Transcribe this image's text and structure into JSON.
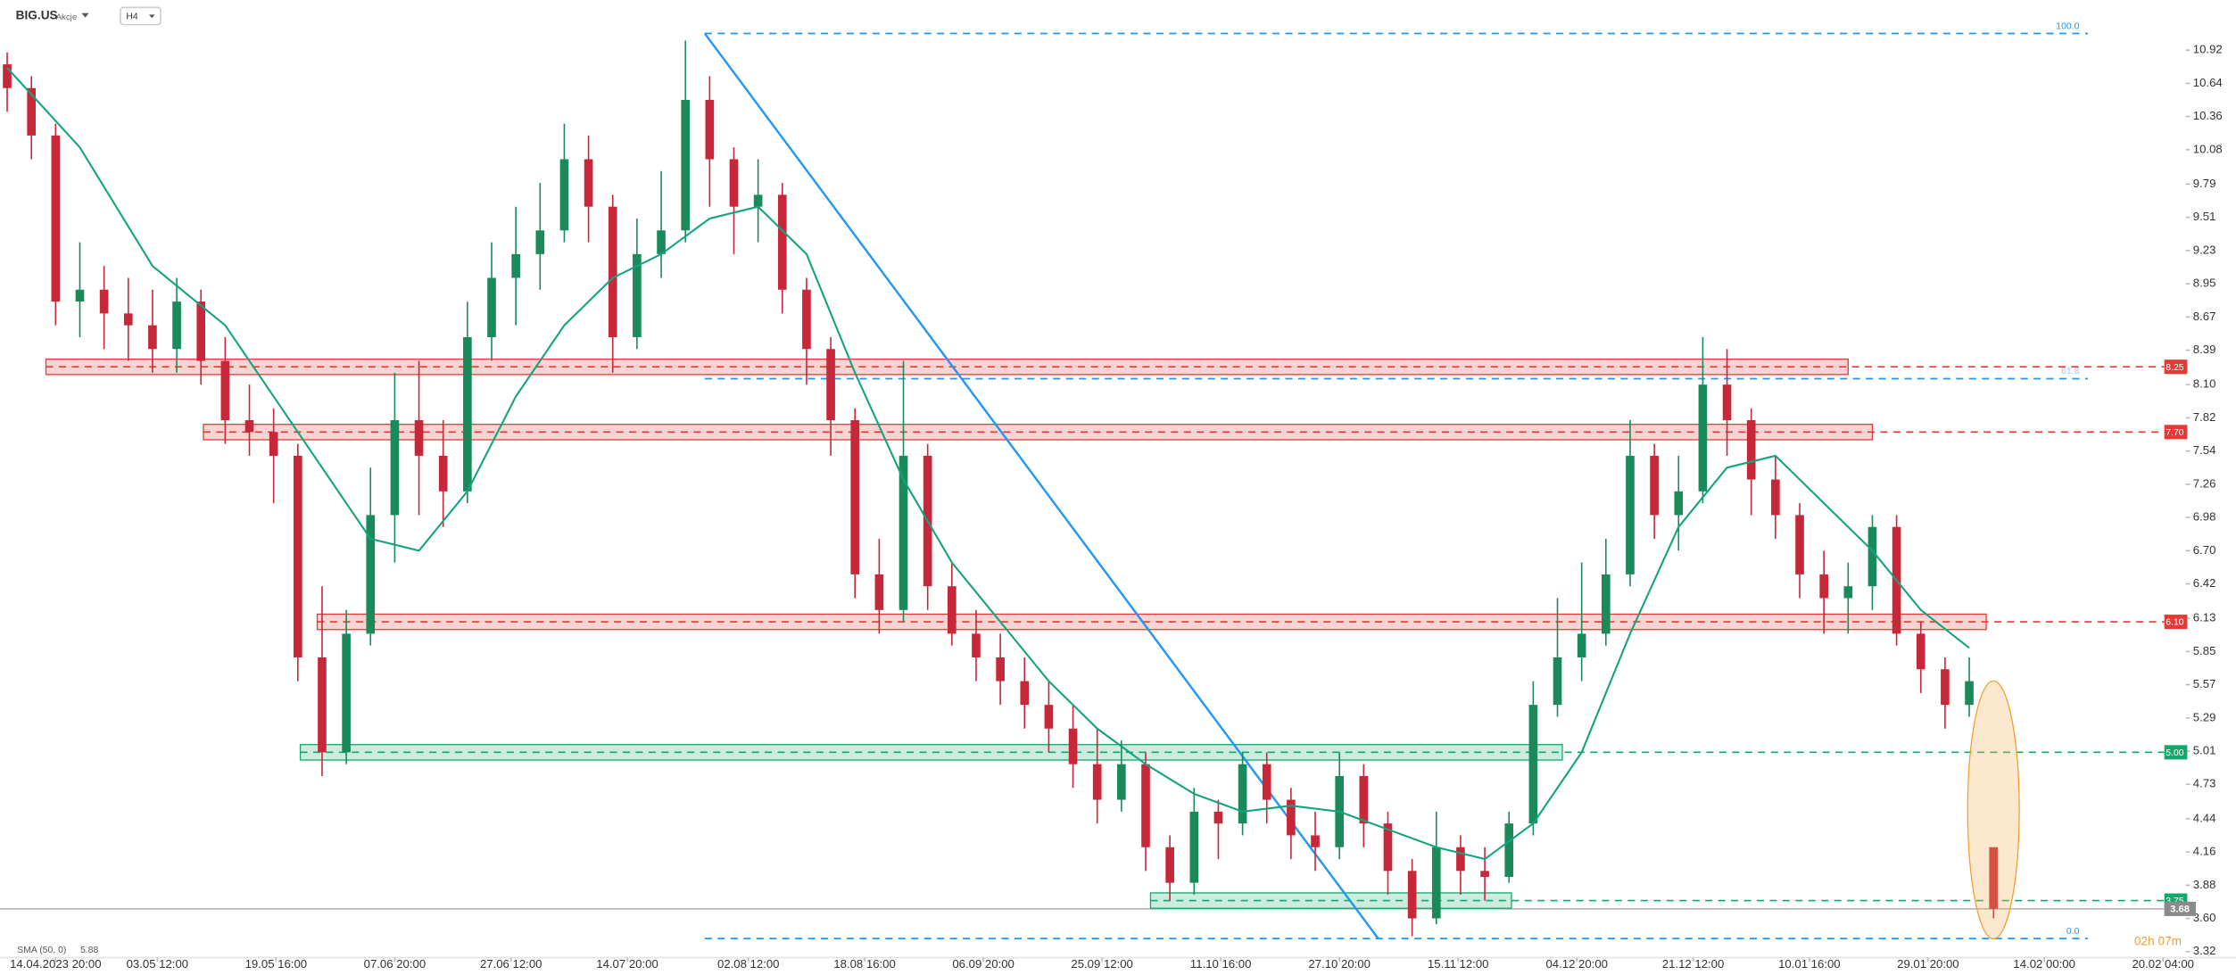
{
  "header": {
    "symbol": "BIG.US",
    "market": "Akcje",
    "interval": "H4"
  },
  "countdown": "02h 07m",
  "chart_data": {
    "type": "candlestick",
    "xlim": [
      0,
      90
    ],
    "xticks": [
      {
        "value": 2.0,
        "label": "14.04.2023 20:00"
      },
      {
        "value": 6.2,
        "label": "03.05 12:00"
      },
      {
        "value": 11.1,
        "label": "19.05 16:00"
      },
      {
        "value": 16.0,
        "label": "07.06 20:00"
      },
      {
        "value": 20.8,
        "label": "27.06 12:00"
      },
      {
        "value": 25.6,
        "label": "14.07 20:00"
      },
      {
        "value": 30.6,
        "label": "02.08 12:00"
      },
      {
        "value": 35.4,
        "label": "18.08 16:00"
      },
      {
        "value": 40.3,
        "label": "06.09 20:00"
      },
      {
        "value": 45.2,
        "label": "25.09 12:00"
      },
      {
        "value": 50.1,
        "label": "11.10 16:00"
      },
      {
        "value": 55.0,
        "label": "27.10 20:00"
      },
      {
        "value": 59.9,
        "label": "15.11 12:00"
      },
      {
        "value": 64.8,
        "label": "04.12 20:00"
      },
      {
        "value": 69.6,
        "label": "21.12 12:00"
      },
      {
        "value": 74.4,
        "label": "10.01 16:00"
      },
      {
        "value": 79.3,
        "label": "29.01 20:00"
      },
      {
        "value": 84.1,
        "label": "14.02 00:00"
      },
      {
        "value": 89.0,
        "label": "20.02 04:00"
      }
    ],
    "ylim": [
      3.27,
      11.34
    ],
    "yticks": [
      10.92,
      10.64,
      10.36,
      10.08,
      9.79,
      9.51,
      9.23,
      8.95,
      8.67,
      8.39,
      {
        "value": 8.1,
        "label": "8.10"
      },
      7.82,
      7.54,
      7.26,
      6.98,
      {
        "value": 6.7,
        "label": "6.70"
      },
      6.42,
      6.13,
      5.85,
      5.57,
      5.29,
      5.01,
      4.73,
      4.44,
      4.16,
      3.88,
      {
        "value": 3.6,
        "label": "3.60"
      },
      3.32
    ],
    "up_color": "#1b8a5a",
    "down_color": "#c62839",
    "open": [
      10.8,
      10.6,
      10.2,
      8.8,
      8.9,
      8.7,
      8.6,
      8.4,
      8.8,
      8.3,
      7.8,
      7.7,
      7.5,
      5.8,
      5.0,
      6.0,
      7.0,
      7.8,
      7.5,
      7.2,
      8.5,
      9.0,
      9.2,
      9.4,
      10.0,
      9.6,
      8.5,
      9.2,
      9.4,
      10.5,
      10.0,
      9.6,
      9.7,
      8.9,
      8.4,
      7.8,
      6.5,
      6.2,
      7.5,
      6.4,
      6.0,
      5.8,
      5.6,
      5.4,
      5.2,
      4.9,
      4.6,
      4.9,
      4.2,
      3.9,
      4.5,
      4.4,
      4.9,
      4.6,
      4.3,
      4.2,
      4.8,
      4.4,
      4.0,
      3.6,
      4.2,
      4.0,
      3.95,
      4.4,
      5.4,
      5.8,
      6.0,
      6.5,
      7.5,
      7.0,
      7.2,
      8.1,
      7.8,
      7.3,
      7.0,
      6.5,
      6.3,
      6.4,
      6.9,
      6.0,
      5.7,
      5.4,
      4.2
    ],
    "high": [
      10.9,
      10.7,
      10.3,
      9.3,
      9.1,
      9.0,
      8.9,
      9.0,
      8.9,
      8.5,
      8.1,
      7.9,
      7.6,
      6.4,
      6.2,
      7.4,
      8.2,
      8.3,
      7.8,
      8.8,
      9.3,
      9.6,
      9.8,
      10.3,
      10.2,
      9.7,
      9.5,
      9.9,
      11.0,
      10.7,
      10.1,
      10.0,
      9.8,
      9.0,
      8.5,
      7.9,
      6.8,
      8.3,
      7.6,
      6.6,
      6.2,
      6.0,
      5.8,
      5.6,
      5.4,
      5.2,
      5.1,
      5.0,
      4.3,
      4.7,
      4.6,
      5.0,
      5.0,
      4.7,
      4.5,
      5.0,
      4.9,
      4.5,
      4.1,
      4.5,
      4.3,
      4.2,
      4.5,
      5.6,
      6.3,
      6.6,
      6.8,
      7.8,
      7.6,
      7.5,
      8.5,
      8.4,
      7.9,
      7.5,
      7.1,
      6.7,
      6.6,
      7.0,
      7.0,
      6.1,
      5.8,
      5.8,
      4.2
    ],
    "low": [
      10.4,
      10.0,
      8.6,
      8.5,
      8.4,
      8.3,
      8.2,
      8.2,
      8.1,
      7.6,
      7.5,
      7.1,
      5.6,
      4.8,
      4.9,
      5.9,
      6.6,
      7.0,
      6.9,
      7.1,
      8.3,
      8.6,
      8.9,
      9.3,
      9.3,
      8.2,
      8.4,
      9.0,
      9.3,
      9.6,
      9.2,
      9.3,
      8.7,
      8.1,
      7.5,
      6.3,
      6.0,
      6.1,
      6.2,
      5.9,
      5.6,
      5.4,
      5.2,
      5.0,
      4.7,
      4.4,
      4.5,
      4.0,
      3.75,
      3.8,
      4.1,
      4.3,
      4.4,
      4.1,
      4.0,
      4.1,
      4.2,
      3.8,
      3.45,
      3.55,
      3.8,
      3.75,
      3.9,
      4.3,
      5.3,
      5.6,
      5.9,
      6.4,
      6.8,
      6.7,
      7.1,
      7.5,
      7.0,
      6.8,
      6.3,
      6.0,
      6.0,
      6.2,
      5.9,
      5.5,
      5.2,
      5.3,
      3.6
    ],
    "close": [
      10.6,
      10.2,
      8.8,
      8.9,
      8.7,
      8.6,
      8.4,
      8.8,
      8.3,
      7.8,
      7.7,
      7.5,
      5.8,
      5.0,
      6.0,
      7.0,
      7.8,
      7.5,
      7.2,
      8.5,
      9.0,
      9.2,
      9.4,
      10.0,
      9.6,
      8.5,
      9.2,
      9.4,
      10.5,
      10.0,
      9.6,
      9.7,
      8.9,
      8.4,
      7.8,
      6.5,
      6.2,
      7.5,
      6.4,
      6.0,
      5.8,
      5.6,
      5.4,
      5.2,
      4.9,
      4.6,
      4.9,
      4.2,
      3.9,
      4.5,
      4.4,
      4.9,
      4.6,
      4.3,
      4.2,
      4.8,
      4.4,
      4.0,
      3.6,
      4.2,
      4.0,
      3.95,
      4.4,
      5.4,
      5.8,
      6.0,
      6.5,
      7.5,
      7.0,
      7.2,
      8.1,
      7.8,
      7.3,
      7.0,
      6.5,
      6.3,
      6.4,
      6.9,
      6.0,
      5.7,
      5.4,
      5.6,
      3.68
    ],
    "sma": {
      "name": "SMA (50, 0)",
      "last": 5.88,
      "color": "#14a37f",
      "x": [
        0,
        3,
        6,
        9,
        12,
        15,
        17,
        19,
        21,
        23,
        25,
        27,
        29,
        31,
        33,
        35,
        37,
        39,
        41,
        43,
        45,
        47,
        49,
        51,
        53,
        55,
        57,
        59,
        61,
        63,
        65,
        67,
        69,
        71,
        73,
        75,
        77,
        79,
        81
      ],
      "values": [
        10.77,
        10.1,
        9.1,
        8.6,
        7.7,
        6.8,
        6.7,
        7.2,
        8.0,
        8.6,
        9.0,
        9.2,
        9.5,
        9.6,
        9.2,
        8.2,
        7.3,
        6.6,
        6.1,
        5.6,
        5.2,
        4.9,
        4.65,
        4.5,
        4.55,
        4.5,
        4.35,
        4.2,
        4.1,
        4.4,
        5.0,
        6.0,
        6.9,
        7.4,
        7.5,
        7.1,
        6.7,
        6.2,
        5.88
      ]
    },
    "levels": [
      {
        "value": 8.25,
        "label": "8.25",
        "color": "#e53935",
        "from": 1.6,
        "to": 76.0
      },
      {
        "value": 7.7,
        "label": "7.70",
        "color": "#e53935",
        "from": 8.1,
        "to": 77.0
      },
      {
        "value": 6.1,
        "label": "6.10",
        "color": "#e53935",
        "from": 12.8,
        "to": 81.7
      },
      {
        "value": 5.0,
        "label": "5.00",
        "color": "#13a86b",
        "from": 12.1,
        "to": 64.2
      },
      {
        "value": 3.75,
        "label": "3.75",
        "color": "#13a86b",
        "from": 47.2,
        "to": 62.1
      }
    ],
    "last_price": 3.68,
    "fib": {
      "color": "#2196f3",
      "from": 28.8,
      "to": 85.9,
      "levels": [
        {
          "value": 11.06,
          "label": "100.0"
        },
        {
          "value": 8.15,
          "label": "61.8"
        },
        {
          "value": 3.43,
          "label": "0.0"
        }
      ]
    },
    "trendline": {
      "x": [
        28.8,
        56.6
      ],
      "values": [
        11.06,
        3.43
      ]
    }
  }
}
